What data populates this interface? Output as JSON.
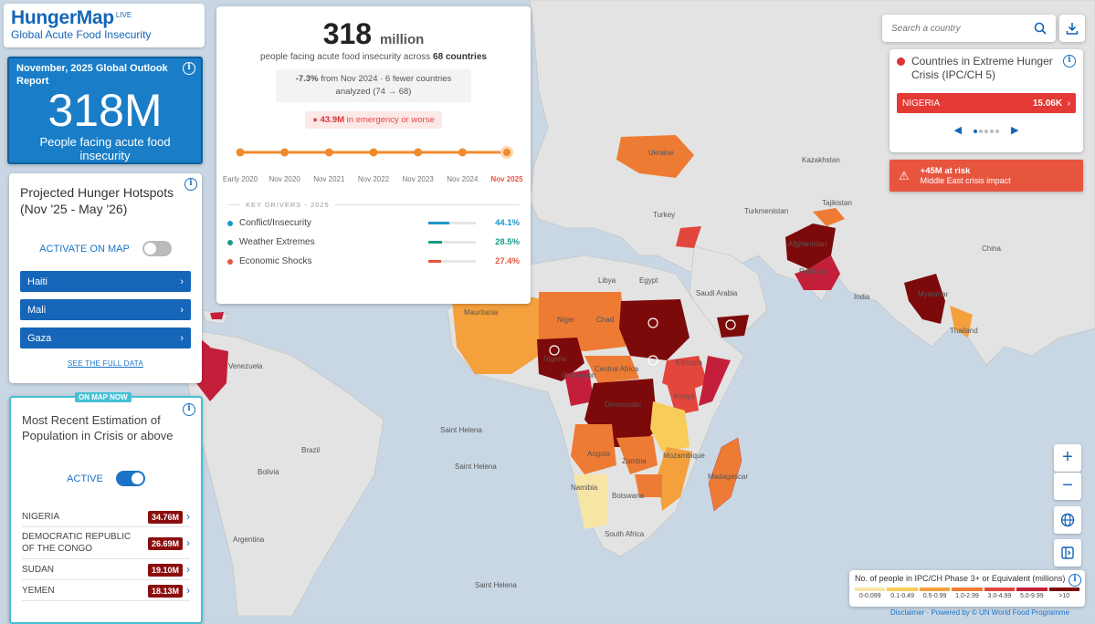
{
  "brand": {
    "name": "HungerMap",
    "live": "LIVE",
    "subtitle": "Global Acute Food Insecurity"
  },
  "outlook": {
    "title": "November, 2025 Global Outlook Report",
    "big": "318M",
    "desc": "People facing acute food insecurity"
  },
  "hotspots": {
    "title": "Projected Hunger Hotspots (Nov '25 - May '26)",
    "toggle_label": "ACTIVATE ON MAP",
    "items": [
      {
        "label": "Haiti"
      },
      {
        "label": "Mali"
      },
      {
        "label": "Gaza"
      }
    ],
    "see_full": "SEE THE FULL DATA"
  },
  "recent": {
    "badge": "ON MAP NOW",
    "title": "Most Recent Estimation of Population in Crisis or above",
    "toggle_label": "ACTIVE",
    "rows": [
      {
        "country": "NIGERIA",
        "value": "34.76M"
      },
      {
        "country": "DEMOCRATIC REPUBLIC OF THE CONGO",
        "value": "26.69M"
      },
      {
        "country": "SUDAN",
        "value": "19.10M"
      },
      {
        "country": "YEMEN",
        "value": "18.13M"
      }
    ]
  },
  "center": {
    "number": "318",
    "unit": "million",
    "sub_pre": "people facing acute food insecurity across",
    "sub_countries": "68 countries",
    "change_pct": "-7.3%",
    "change_text": "from Nov 2024 · 6 fewer countries analyzed (74 → 68)",
    "emergency_value": "43.9M",
    "emergency_text": "in emergency or worse",
    "timeline": [
      "Early 2020",
      "Nov 2020",
      "Nov 2021",
      "Nov 2022",
      "Nov 2023",
      "Nov 2024",
      "Nov 2025"
    ],
    "drivers_title": "KEY DRIVERS - 2025",
    "drivers": [
      {
        "name": "Conflict/Insecurity",
        "pct": "44.1%",
        "value": 44.1,
        "color": "#1a96c8"
      },
      {
        "name": "Weather Extremes",
        "pct": "28.5%",
        "value": 28.5,
        "color": "#179a86"
      },
      {
        "name": "Economic Shocks",
        "pct": "27.4%",
        "value": 27.4,
        "color": "#e8553f"
      }
    ]
  },
  "search": {
    "placeholder": "Search a country"
  },
  "extreme": {
    "title": "Countries in Extreme Hunger Crisis (IPC/CH 5)",
    "country": "NIGERIA",
    "value": "15.06K",
    "pages": 5,
    "current_page": 1
  },
  "risk": {
    "title": "+45M at risk",
    "subtitle": "Middle East crisis impact"
  },
  "legend": {
    "title": "No. of people in IPC/CH Phase 3+ or Equivalent (millions)",
    "bins": [
      "0-0.099",
      "0.1-0.49",
      "0.5-0.99",
      "1.0-2.99",
      "3.0-4.99",
      "5.0-9.99",
      ">10"
    ],
    "colors": [
      "#f7e5a6",
      "#f7cc58",
      "#f4a03c",
      "#ee7b33",
      "#e2463c",
      "#c41f3a",
      "#7d0a0a"
    ]
  },
  "credit": "Disclaimer · Powered by © UN World Food Programme",
  "map_labels": {
    "ukraine": "Ukraine",
    "kazakhstan": "Kazakhstan",
    "turkey": "Turkey",
    "turkmenistan": "Turkmenistan",
    "tajikistan": "Tajikistan",
    "afghanistan": "Afghanistan",
    "pakistan": "Pakistan",
    "india": "India",
    "china": "China",
    "myanmar": "Myanmar",
    "thailand": "Thailand",
    "libya": "Libya",
    "egypt": "Egypt",
    "saudi": "Saudi Arabia",
    "mauritania": "Mauritania",
    "niger": "Niger",
    "chad": "Chad",
    "nigeria": "Nigeria",
    "cameroon": "Cameroon",
    "car": "Central Africa",
    "ethiopia": "Ethiopia",
    "kenya": "Kenya",
    "drc": "Democratic",
    "angola": "Angola",
    "zambia": "Zambia",
    "namibia": "Namibia",
    "botswana": "Botswana",
    "mozambique": "Mozambique",
    "madagascar": "Madagascar",
    "south_africa": "South Africa",
    "brazil": "Brazil",
    "venezuela": "Venezuela",
    "bolivia": "Bolivia",
    "argentina": "Argentina",
    "st_helena1": "Saint Helena",
    "st_helena2": "Saint Helena",
    "st_helena3": "Saint Helena"
  }
}
